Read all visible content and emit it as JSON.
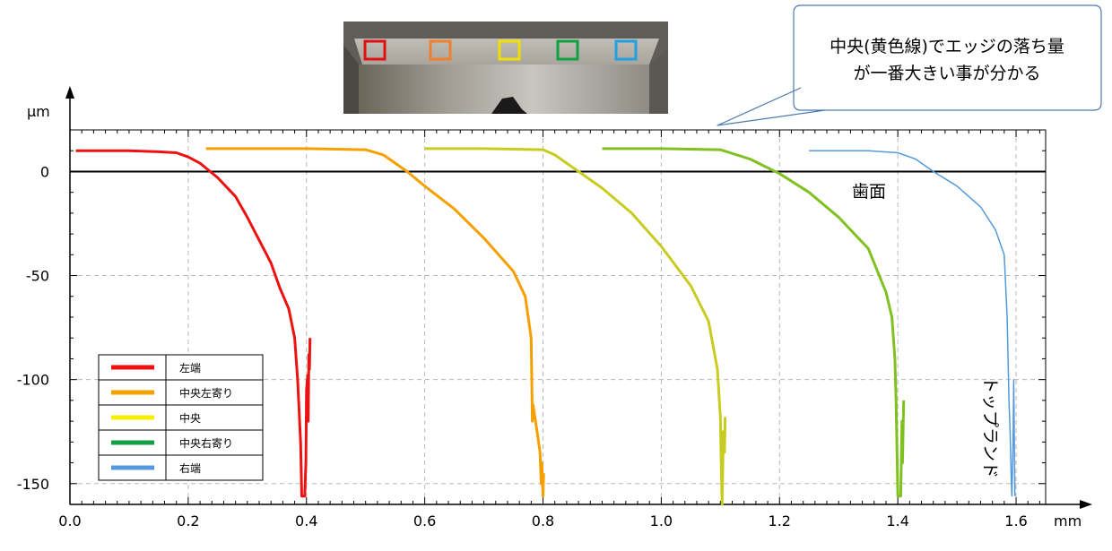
{
  "chart_data": {
    "type": "line",
    "title": "",
    "xlabel": "mm",
    "ylabel": "μm",
    "xlim": [
      0,
      1.65
    ],
    "ylim": [
      -160,
      20
    ],
    "x_ticks": [
      0.0,
      0.2,
      0.4,
      0.6,
      0.8,
      1.0,
      1.2,
      1.4,
      1.6
    ],
    "x_tick_labels": [
      "0.0",
      "0.2",
      "0.4",
      "0.6",
      "0.8",
      "1.0",
      "1.2",
      "1.4",
      "1.6"
    ],
    "y_ticks": [
      0,
      -50,
      -100,
      -150
    ],
    "y_tick_labels": [
      "0",
      "-50",
      "-100",
      "-150"
    ],
    "grid": true,
    "legend_position": "bottom-left",
    "annotations": {
      "tooth_face": "歯面",
      "top_land": "トップランド",
      "callout_line1": "中央(黄色線)でエッジの落ち量",
      "callout_line2": "が一番大きい事が分かる"
    },
    "markers": [
      {
        "color": "#e01010"
      },
      {
        "color": "#f08030"
      },
      {
        "color": "#f0e000"
      },
      {
        "color": "#10a040"
      },
      {
        "color": "#20a0e0"
      }
    ],
    "series": [
      {
        "name": "左端",
        "color": "#ee1111",
        "width": 3,
        "points": [
          [
            0.01,
            10
          ],
          [
            0.05,
            10
          ],
          [
            0.1,
            10
          ],
          [
            0.15,
            9.5
          ],
          [
            0.18,
            9
          ],
          [
            0.2,
            7
          ],
          [
            0.22,
            4
          ],
          [
            0.25,
            -3
          ],
          [
            0.28,
            -12
          ],
          [
            0.3,
            -22
          ],
          [
            0.32,
            -33
          ],
          [
            0.34,
            -44
          ],
          [
            0.355,
            -56
          ],
          [
            0.37,
            -66
          ],
          [
            0.38,
            -80
          ],
          [
            0.385,
            -100
          ],
          [
            0.39,
            -130
          ],
          [
            0.392,
            -156
          ],
          [
            0.397,
            -156
          ],
          [
            0.399,
            -140
          ],
          [
            0.4,
            -105
          ],
          [
            0.402,
            -98
          ],
          [
            0.403,
            -120
          ],
          [
            0.404,
            -88
          ],
          [
            0.405,
            -95
          ],
          [
            0.406,
            -80
          ]
        ]
      },
      {
        "name": "中央左寄り",
        "color": "#f5a000",
        "width": 3,
        "points": [
          [
            0.23,
            11
          ],
          [
            0.3,
            11
          ],
          [
            0.4,
            11
          ],
          [
            0.5,
            10.5
          ],
          [
            0.53,
            8
          ],
          [
            0.57,
            0
          ],
          [
            0.6,
            -7
          ],
          [
            0.65,
            -18
          ],
          [
            0.7,
            -32
          ],
          [
            0.75,
            -48
          ],
          [
            0.77,
            -60
          ],
          [
            0.78,
            -80
          ],
          [
            0.781,
            -100
          ],
          [
            0.782,
            -120
          ],
          [
            0.783,
            -112
          ],
          [
            0.79,
            -125
          ],
          [
            0.795,
            -135
          ],
          [
            0.797,
            -150
          ],
          [
            0.798,
            -140
          ],
          [
            0.8,
            -156
          ],
          [
            0.801,
            -145
          ]
        ]
      },
      {
        "name": "中央",
        "color": "#c8cc20",
        "width": 3,
        "points": [
          [
            0.6,
            11
          ],
          [
            0.7,
            11
          ],
          [
            0.8,
            10.5
          ],
          [
            0.82,
            8
          ],
          [
            0.86,
            0
          ],
          [
            0.9,
            -8
          ],
          [
            0.95,
            -20
          ],
          [
            1.0,
            -36
          ],
          [
            1.05,
            -55
          ],
          [
            1.08,
            -72
          ],
          [
            1.095,
            -95
          ],
          [
            1.1,
            -118
          ],
          [
            1.102,
            -150
          ],
          [
            1.103,
            -160
          ],
          [
            1.105,
            -125
          ],
          [
            1.107,
            -135
          ],
          [
            1.108,
            -118
          ]
        ]
      },
      {
        "name": "中央右寄り",
        "color": "#80c020",
        "width": 3,
        "points": [
          [
            0.9,
            11
          ],
          [
            1.0,
            11
          ],
          [
            1.1,
            10.5
          ],
          [
            1.15,
            6
          ],
          [
            1.2,
            -1
          ],
          [
            1.25,
            -10
          ],
          [
            1.3,
            -22
          ],
          [
            1.35,
            -37
          ],
          [
            1.38,
            -58
          ],
          [
            1.39,
            -70
          ],
          [
            1.395,
            -90
          ],
          [
            1.397,
            -110
          ],
          [
            1.4,
            -156
          ],
          [
            1.405,
            -156
          ],
          [
            1.407,
            -120
          ],
          [
            1.408,
            -140
          ],
          [
            1.41,
            -110
          ]
        ]
      },
      {
        "name": "右端",
        "color": "#5599dd",
        "width": 1.5,
        "points": [
          [
            1.25,
            10
          ],
          [
            1.3,
            10
          ],
          [
            1.35,
            10
          ],
          [
            1.4,
            9
          ],
          [
            1.43,
            6
          ],
          [
            1.46,
            0
          ],
          [
            1.5,
            -7
          ],
          [
            1.54,
            -17
          ],
          [
            1.565,
            -28
          ],
          [
            1.58,
            -40
          ],
          [
            1.585,
            -70
          ],
          [
            1.588,
            -110
          ],
          [
            1.59,
            -125
          ],
          [
            1.592,
            -150
          ],
          [
            1.593,
            -156
          ],
          [
            1.595,
            -130
          ],
          [
            1.596,
            -100
          ],
          [
            1.598,
            -156
          ]
        ]
      }
    ]
  }
}
